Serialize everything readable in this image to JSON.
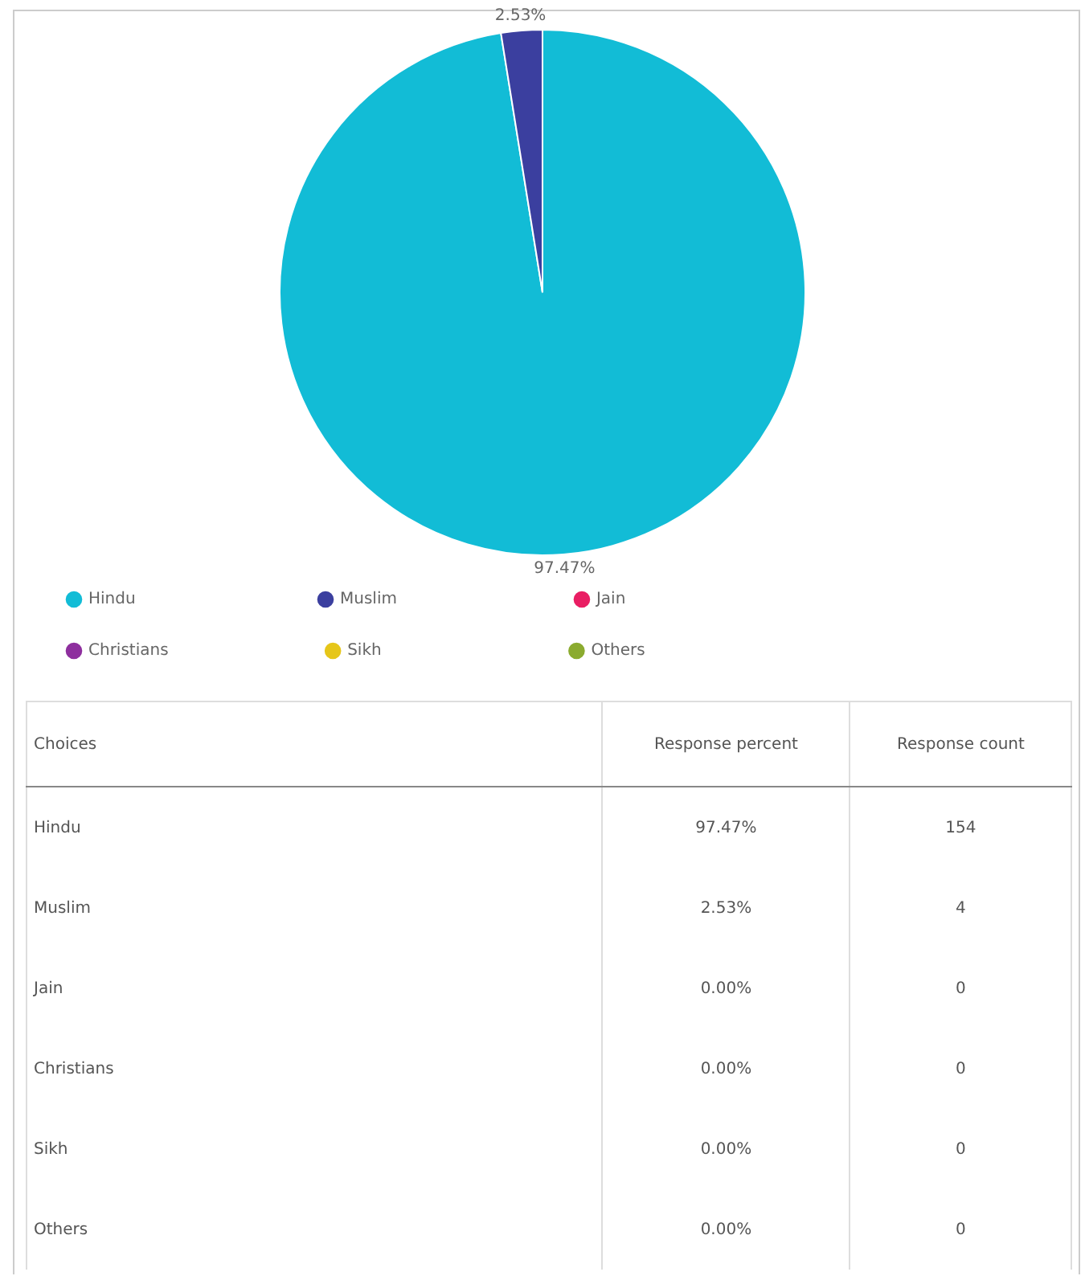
{
  "chart_data": [
    {
      "type": "pie",
      "categories": [
        "Hindu",
        "Muslim",
        "Jain",
        "Christians",
        "Sikh",
        "Others"
      ],
      "values": [
        97.47,
        2.53,
        0,
        0,
        0,
        0
      ],
      "colors": [
        "#12bcd6",
        "#3b3f9f",
        "#e91e63",
        "#8e2f9e",
        "#e6c619",
        "#8bab2f"
      ],
      "value_labels": [
        "97.47%",
        "2.53%",
        null,
        null,
        null,
        null
      ],
      "legend": "bottom"
    },
    {
      "type": "other",
      "xlabel": "Choices",
      "categories": [
        "Hindu",
        "Muslim",
        "Jain",
        "Christians",
        "Sikh",
        "Others"
      ],
      "data_labels": true,
      "series": [
        {
          "name": "Response percent",
          "values": [
            97.47,
            2.53,
            0,
            0,
            0,
            0
          ],
          "value_labels": [
            "97.47%",
            "2.53%",
            "0.00%",
            "0.00%",
            "0.00%",
            "0.00%"
          ]
        },
        {
          "name": "Response count",
          "values": [
            154,
            4,
            0,
            0,
            0,
            0
          ]
        }
      ]
    }
  ]
}
